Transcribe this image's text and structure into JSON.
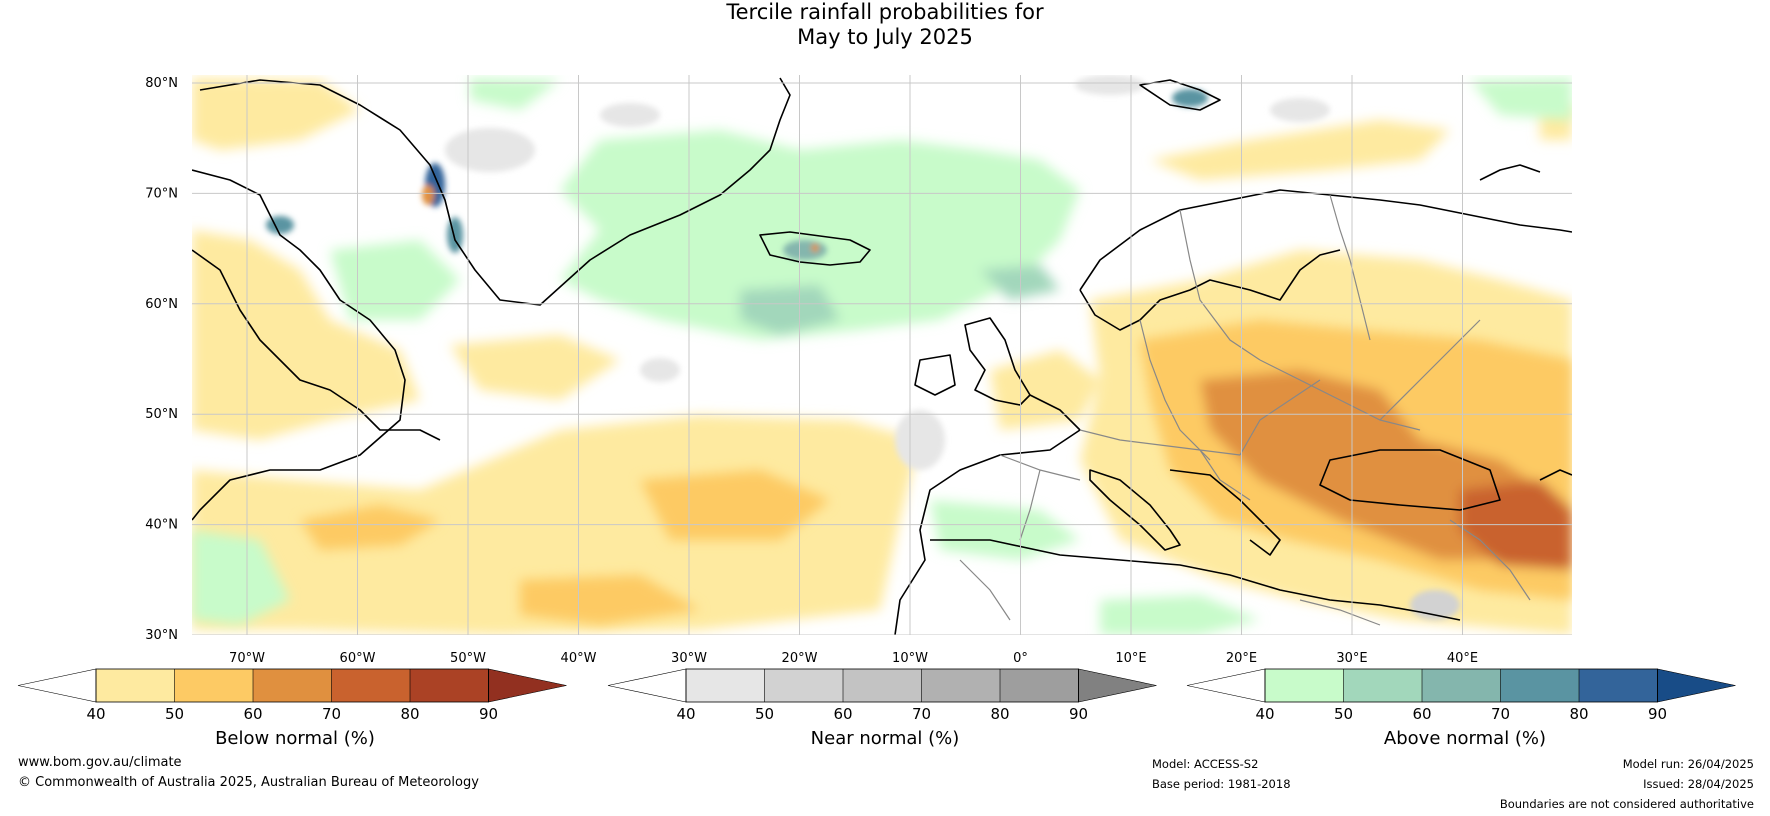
{
  "title": {
    "line1": "Tercile rainfall probabilities for",
    "line2": "May to July 2025"
  },
  "map": {
    "lat_labels": [
      "80°N",
      "70°N",
      "60°N",
      "50°N",
      "40°N",
      "30°N"
    ],
    "lon_labels": [
      "70°W",
      "60°W",
      "50°W",
      "40°W",
      "30°W",
      "20°W",
      "10°W",
      "0°",
      "10°E",
      "20°E",
      "30°E",
      "40°E"
    ],
    "colors": {
      "land_outline": "#000000",
      "border": "#888888",
      "grid": "#c8c8c8"
    }
  },
  "colorbars": [
    {
      "name": "below",
      "label": "Below normal (%)",
      "ticks": [
        "40",
        "50",
        "60",
        "70",
        "80",
        "90"
      ],
      "colors": [
        "#ffffff",
        "#feeaa0",
        "#fdca64",
        "#e0903f",
        "#c9622e",
        "#ab4225",
        "#923020"
      ]
    },
    {
      "name": "near",
      "label": "Near normal (%)",
      "ticks": [
        "40",
        "50",
        "60",
        "70",
        "80",
        "90"
      ],
      "colors": [
        "#ffffff",
        "#e6e6e6",
        "#d2d2d2",
        "#c3c3c3",
        "#b1b1b1",
        "#9e9e9e",
        "#818181"
      ]
    },
    {
      "name": "above",
      "label": "Above normal (%)",
      "ticks": [
        "40",
        "50",
        "60",
        "70",
        "80",
        "90"
      ],
      "colors": [
        "#ffffff",
        "#c8fbca",
        "#a2d7bb",
        "#84b6ad",
        "#5a94a2",
        "#33649a",
        "#184c87"
      ]
    }
  ],
  "footer": {
    "website": "www.bom.gov.au/climate",
    "copyright": "© Commonwealth of Australia 2025, Australian Bureau of Meteorology",
    "model": "Model: ACCESS-S2",
    "base_period": "Base period: 1981-2018",
    "model_run": "Model run: 26/04/2025",
    "issued": "Issued: 28/04/2025",
    "disclaimer": "Boundaries are not considered authoritative"
  }
}
